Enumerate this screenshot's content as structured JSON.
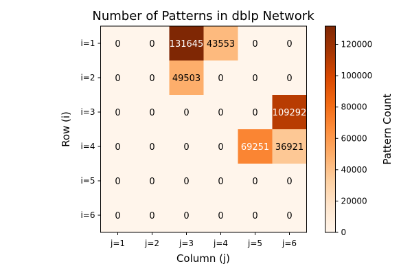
{
  "chart_data": {
    "type": "heatmap",
    "title": "Number of Patterns in dblp Network",
    "xlabel": "Column (j)",
    "ylabel": "Row (i)",
    "x_categories": [
      "j=1",
      "j=2",
      "j=3",
      "j=4",
      "j=5",
      "j=6"
    ],
    "y_categories": [
      "i=1",
      "i=2",
      "i=3",
      "i=4",
      "i=5",
      "i=6"
    ],
    "values": [
      [
        0,
        0,
        131645,
        43553,
        0,
        0
      ],
      [
        0,
        0,
        49503,
        0,
        0,
        0
      ],
      [
        0,
        0,
        0,
        0,
        0,
        109292
      ],
      [
        0,
        0,
        0,
        0,
        69251,
        36921
      ],
      [
        0,
        0,
        0,
        0,
        0,
        0
      ],
      [
        0,
        0,
        0,
        0,
        0,
        0
      ]
    ],
    "colorbar": {
      "label": "Pattern Count",
      "range": [
        0,
        131645
      ],
      "ticks": [
        0,
        20000,
        40000,
        60000,
        80000,
        100000,
        120000
      ],
      "colormap": "Oranges"
    },
    "cell_labels": true,
    "grid": false
  }
}
